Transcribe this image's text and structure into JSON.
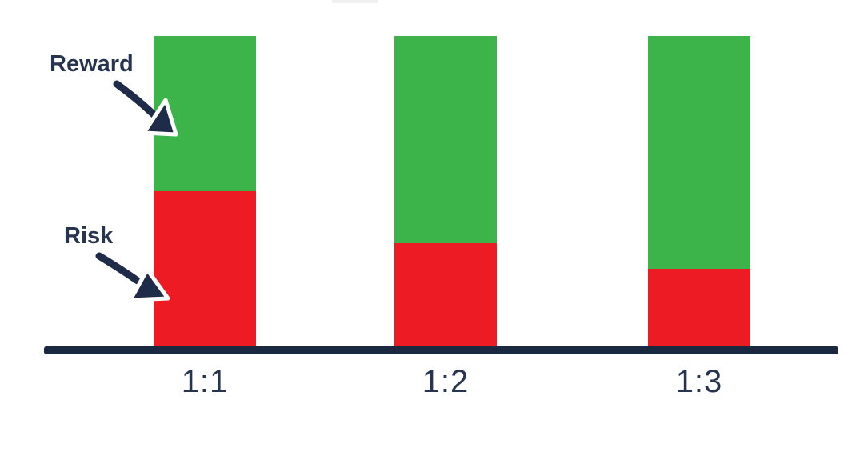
{
  "page": {
    "background": "#ffffff"
  },
  "colors": {
    "reward_green": "#3cb44a",
    "risk_red": "#ed1c24",
    "axis_navy": "#1b2940",
    "label_navy": "#263450"
  },
  "chart_data": {
    "type": "bar",
    "stacked": true,
    "normalized": true,
    "title": "",
    "xlabel": "",
    "ylabel": "",
    "grid": false,
    "legend_position": "none",
    "categories": [
      "1:1",
      "1:2",
      "1:3"
    ],
    "series": [
      {
        "name": "Risk",
        "color": "#ed1c24",
        "values": [
          1,
          1,
          1
        ]
      },
      {
        "name": "Reward",
        "color": "#3cb44a",
        "values": [
          1,
          2,
          3
        ]
      }
    ],
    "annotations": [
      {
        "text": "Reward",
        "arrow": "points to green segment of first bar"
      },
      {
        "text": "Risk",
        "arrow": "points to red segment of first bar"
      }
    ],
    "axis_line_color": "#1b2940"
  }
}
